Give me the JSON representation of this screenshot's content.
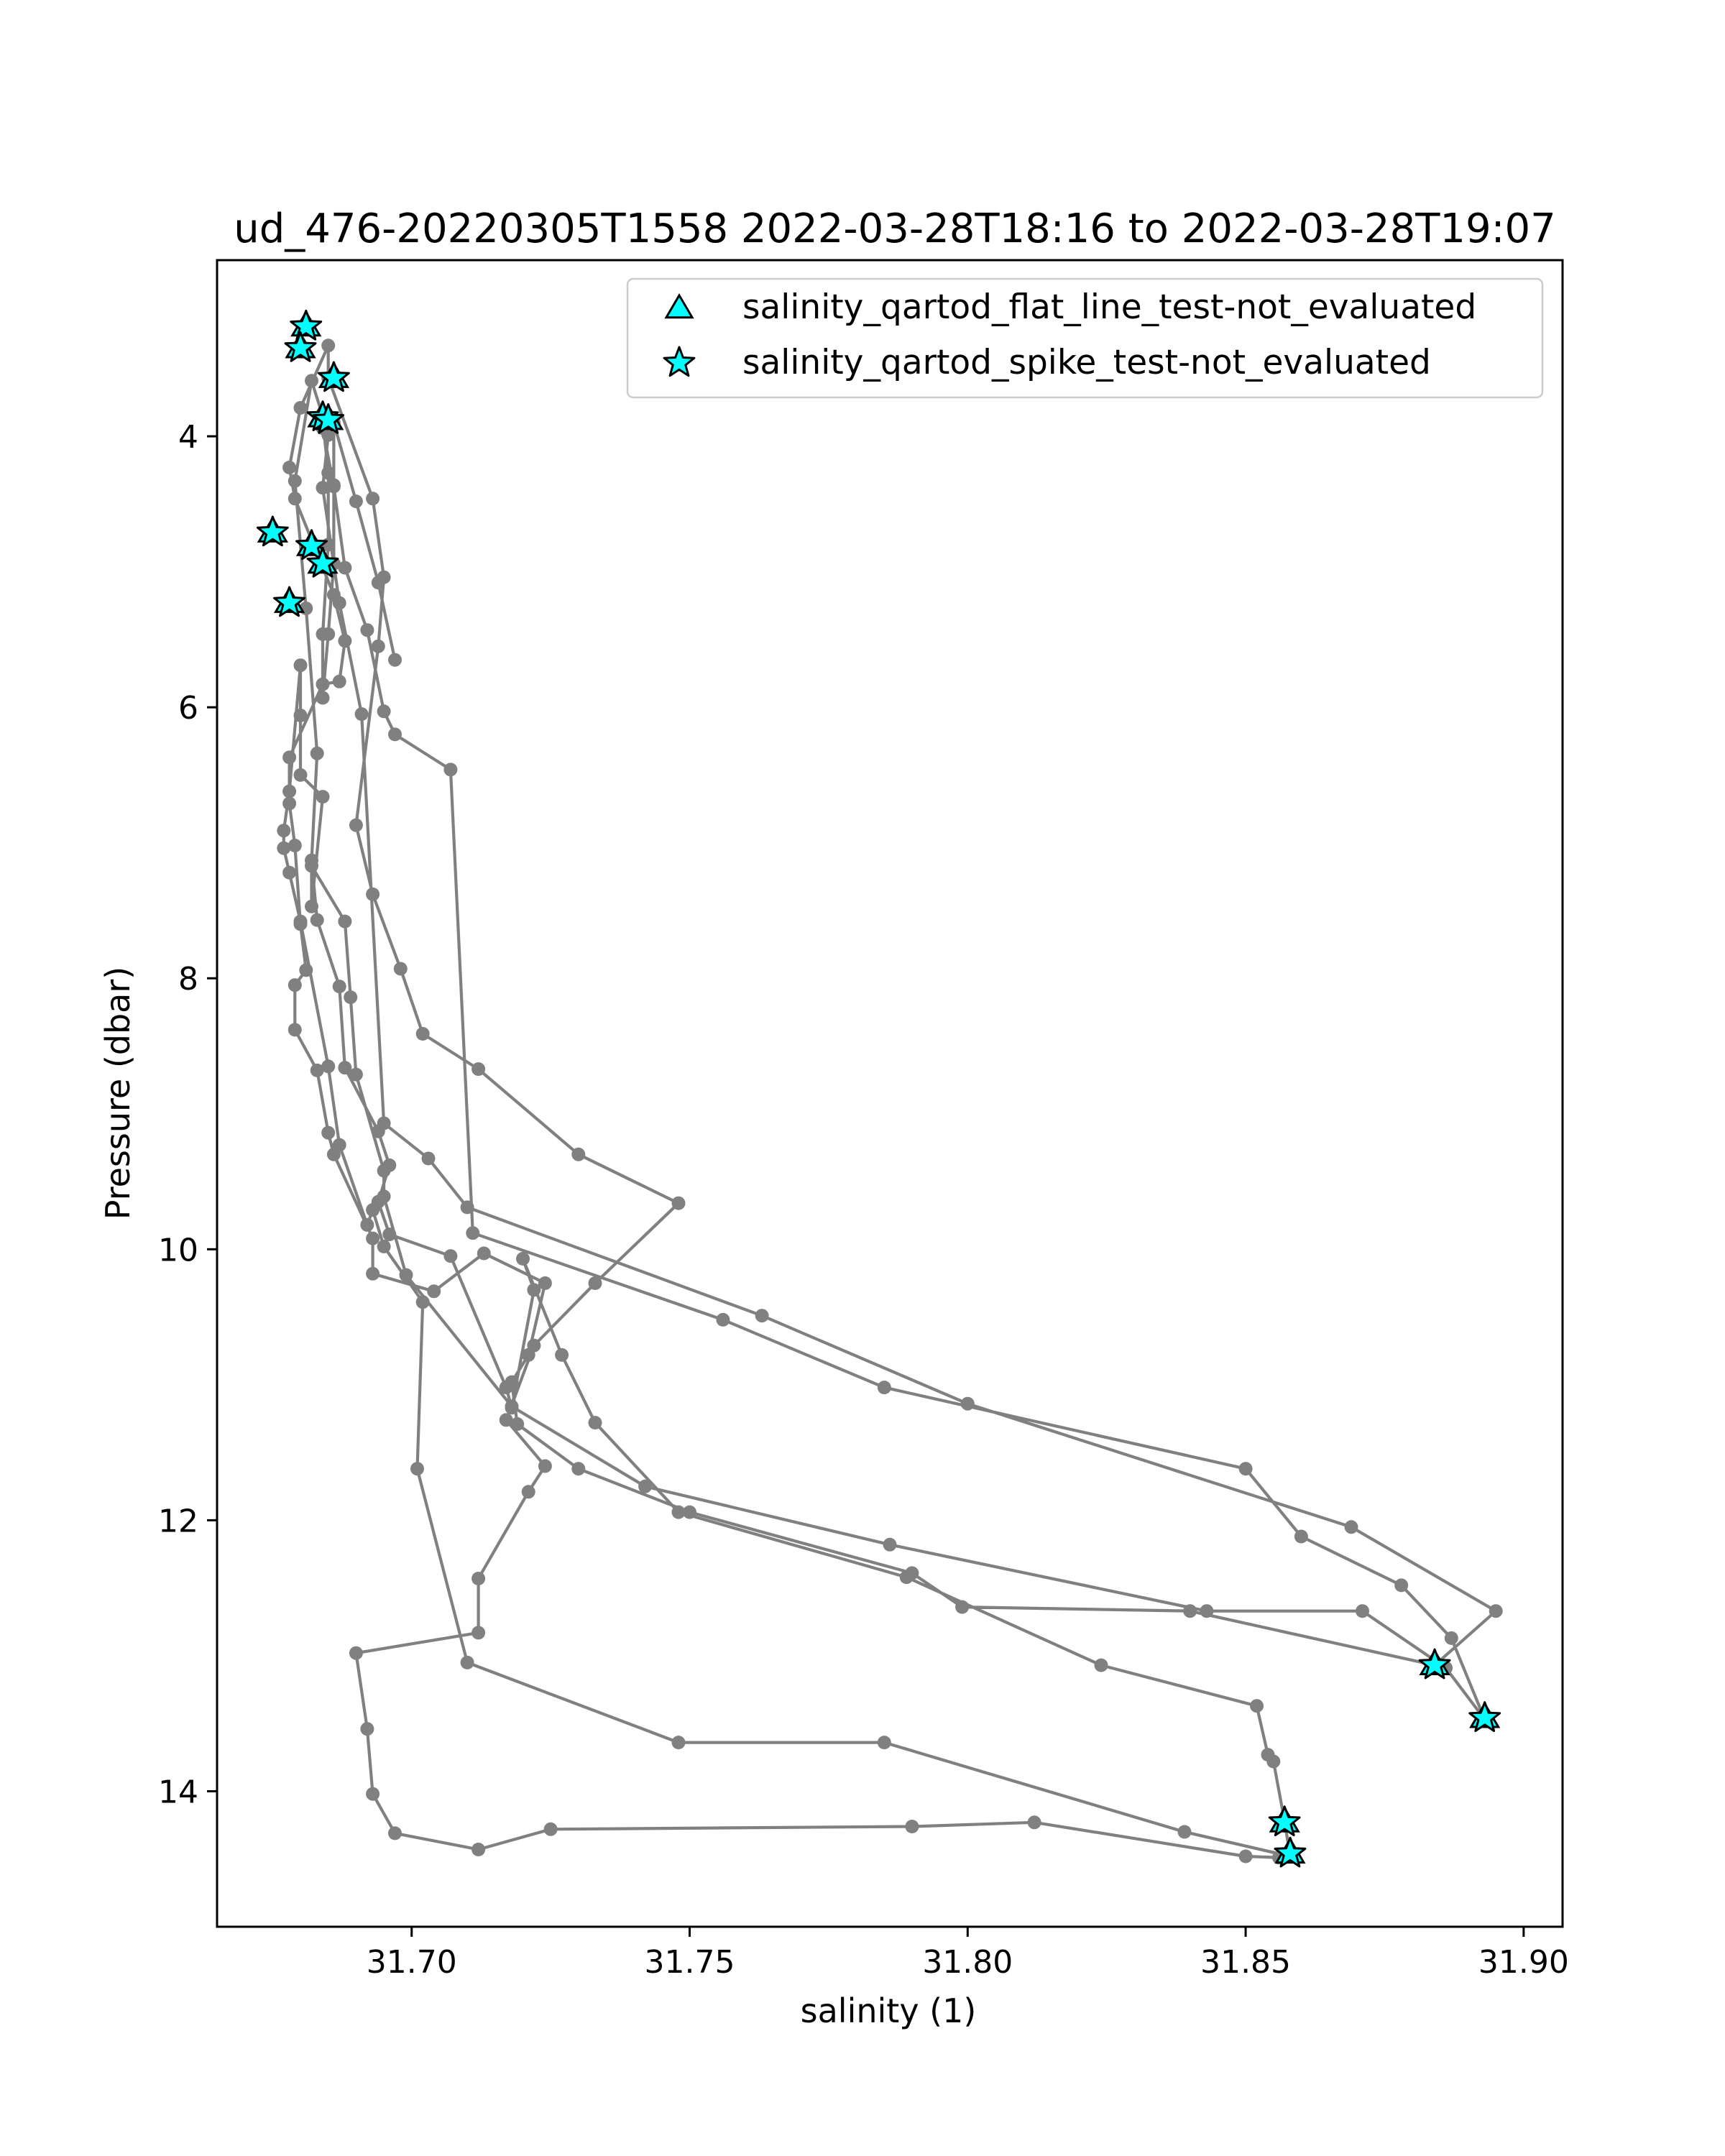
{
  "chart_data": {
    "type": "line",
    "title": "ud_476-20220305T1558 2022-03-28T18:16 to 2022-03-28T19:07",
    "xlabel": "salinity (1)",
    "ylabel": "Pressure (dbar)",
    "xlim": [
      31.665,
      31.907
    ],
    "ylim": [
      15.0,
      2.7
    ],
    "y_inverted": true,
    "grid": false,
    "legend_position": "top-right",
    "xticks": [
      "31.70",
      "31.75",
      "31.80",
      "31.85",
      "31.90"
    ],
    "yticks": [
      "4",
      "6",
      "8",
      "10",
      "12",
      "14"
    ],
    "colors": {
      "profile": "#808080",
      "marker_fill": "#00ffff",
      "marker_edge": "#000000"
    },
    "series": [
      {
        "name": "",
        "marker": "circle",
        "x": [
          31.697,
          31.694,
          31.69,
          31.686,
          31.686,
          31.686,
          31.685,
          31.684,
          31.684,
          31.685,
          31.685,
          31.684,
          31.684,
          31.686,
          31.688,
          31.692,
          31.695,
          31.697,
          31.707,
          31.711,
          31.756,
          31.785,
          31.85,
          31.86,
          31.878,
          31.887,
          31.893,
          31.886,
          31.871,
          31.843,
          31.786,
          31.742,
          31.718,
          31.699,
          31.695,
          31.695,
          31.69,
          31.689,
          31.688,
          31.682,
          31.682,
          31.684,
          31.68,
          31.68,
          31.68,
          31.678,
          31.677,
          31.677,
          31.678,
          31.68,
          31.685,
          31.687,
          31.692,
          31.693,
          31.695,
          31.702,
          31.701,
          31.71,
          31.748,
          31.785,
          31.839,
          31.858,
          31.857,
          31.855,
          31.854,
          31.852,
          31.824,
          31.789,
          31.748,
          31.733,
          31.727,
          31.72,
          31.722,
          31.718,
          31.717,
          31.707,
          31.696,
          31.694,
          31.696,
          31.694,
          31.688,
          31.687,
          31.683,
          31.682,
          31.683,
          31.681,
          31.679,
          31.682,
          31.684,
          31.685,
          31.684,
          31.687,
          31.691,
          31.695,
          31.703,
          31.71,
          31.763,
          31.8,
          31.869,
          31.895,
          31.884,
          31.84,
          31.799,
          31.79,
          31.75,
          31.73,
          31.719,
          31.718,
          31.721,
          31.724,
          31.713,
          31.704,
          31.693,
          31.693,
          31.686,
          31.685,
          31.683,
          31.679,
          31.679,
          31.681,
          31.68,
          31.679,
          31.678,
          31.678,
          31.684,
          31.687,
          31.688,
          31.686,
          31.679,
          31.678,
          31.68,
          31.685,
          31.685,
          31.693,
          31.695,
          31.694,
          31.69,
          31.693,
          31.698,
          31.702,
          31.712,
          31.73,
          31.748,
          31.733,
          31.722,
          31.717,
          31.724,
          31.721,
          31.712,
          31.712,
          31.69,
          31.692,
          31.693,
          31.697,
          31.712,
          31.725,
          31.79,
          31.812,
          31.85,
          31.856
        ],
        "y": [
          5.65,
          5.08,
          4.48,
          3.9,
          4.36,
          4.94,
          5.46,
          5.93,
          5.46,
          4.8,
          4.27,
          3.88,
          3.94,
          4.37,
          4.97,
          5.43,
          6.03,
          6.2,
          6.46,
          9.88,
          10.52,
          11.02,
          11.62,
          12.12,
          12.48,
          12.87,
          13.47,
          13.09,
          12.67,
          12.67,
          12.18,
          11.75,
          11.16,
          10.19,
          9.61,
          9.42,
          8.71,
          8.14,
          7.58,
          7.17,
          7.47,
          6.66,
          6.5,
          6.06,
          5.69,
          6.62,
          6.91,
          7.04,
          7.22,
          7.58,
          8.65,
          9.23,
          9.82,
          9.71,
          9.98,
          10.39,
          11.62,
          13.05,
          13.64,
          13.64,
          14.3,
          14.48,
          14.22,
          13.78,
          13.73,
          13.37,
          13.07,
          12.42,
          11.94,
          11.28,
          10.78,
          10.07,
          10.3,
          11.17,
          11.02,
          10.05,
          9.89,
          9.65,
          9.38,
          9.13,
          8.66,
          8.06,
          7.57,
          7.13,
          6.34,
          5.27,
          4.33,
          3.59,
          3.85,
          3.99,
          4.38,
          5.23,
          6.05,
          9.07,
          9.33,
          9.69,
          10.49,
          11.14,
          12.05,
          12.67,
          13.07,
          12.67,
          12.64,
          12.39,
          11.94,
          11.62,
          11.29,
          10.98,
          10.78,
          10.25,
          10.03,
          10.31,
          10.18,
          9.92,
          9.3,
          9.14,
          8.68,
          8.38,
          8.05,
          7.94,
          7.6,
          7.02,
          6.71,
          6.37,
          5.83,
          5.81,
          5.51,
          5.17,
          4.46,
          4.23,
          3.79,
          3.33,
          3.57,
          4.46,
          5.04,
          5.55,
          6.87,
          7.38,
          7.93,
          8.41,
          8.67,
          9.3,
          9.66,
          10.25,
          10.71,
          11.26,
          11.6,
          11.79,
          12.43,
          12.83,
          12.98,
          13.54,
          14.02,
          14.31,
          14.43,
          14.28,
          14.26,
          14.23,
          14.48,
          14.49
        ]
      },
      {
        "name": "salinity_qartod_flat_line_test-not_evaluated",
        "marker": "triangle",
        "x": [
          31.681,
          31.68,
          31.686,
          31.684,
          31.685,
          31.675,
          31.682,
          31.684,
          31.678,
          31.884,
          31.893,
          31.857,
          31.858
        ],
        "y": [
          3.19,
          3.35,
          3.57,
          3.86,
          3.88,
          4.71,
          4.81,
          4.94,
          5.23,
          13.07,
          13.46,
          14.23,
          14.46
        ]
      },
      {
        "name": "salinity_qartod_spike_test-not_evaluated",
        "marker": "star",
        "x": [
          31.681,
          31.68,
          31.686,
          31.684,
          31.685,
          31.675,
          31.682,
          31.684,
          31.678,
          31.884,
          31.893,
          31.857,
          31.858
        ],
        "y": [
          3.19,
          3.35,
          3.57,
          3.86,
          3.88,
          4.71,
          4.81,
          4.94,
          5.23,
          13.07,
          13.46,
          14.23,
          14.46
        ]
      }
    ]
  }
}
